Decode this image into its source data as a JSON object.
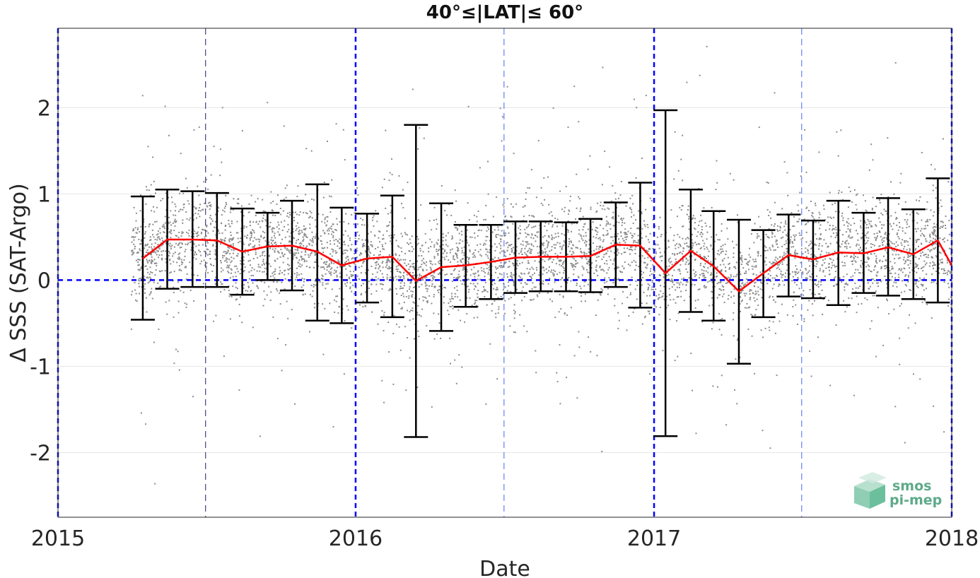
{
  "chart_data": {
    "type": "scatter",
    "title": "40°≤|LAT|≤ 60°",
    "xlabel": "Date",
    "ylabel": "Δ SSS (SAT-Argo)",
    "xlim": [
      "2015-01-01",
      "2018-01-01"
    ],
    "ylim": [
      -2.75,
      2.92
    ],
    "x_ticks": [
      "2015",
      "2016",
      "2017",
      "2018"
    ],
    "y_ticks": [
      -2,
      -1,
      0,
      1,
      2
    ],
    "grid": "horizontal",
    "reference_line_y": 0,
    "year_lines": [
      "2015-01-01",
      "2016-01-01",
      "2017-01-01",
      "2018-01-01"
    ],
    "half_year_lines": [
      "2015-07-01",
      "2016-07-01",
      "2017-07-01"
    ],
    "colors": {
      "scatter": "#8c8c8c",
      "mean_line": "#ff0000",
      "error_bars": "#000000",
      "reference": "#0000ff"
    },
    "scatter_summary": "dense cloud of individual Δ SSS points spread roughly between -2 and 2.5",
    "series": [
      {
        "type": "line",
        "x": [
          "2015-04-15",
          "2015-05-15",
          "2015-06-15",
          "2015-07-15",
          "2015-08-15",
          "2015-09-15",
          "2015-10-15",
          "2015-11-15",
          "2015-12-15",
          "2016-01-15",
          "2016-02-15",
          "2016-03-15",
          "2016-04-15",
          "2016-05-15",
          "2016-06-15",
          "2016-07-15",
          "2016-08-15",
          "2016-09-15",
          "2016-10-15",
          "2016-11-15",
          "2016-12-15",
          "2017-01-15",
          "2017-02-15",
          "2017-03-15",
          "2017-04-15",
          "2017-05-15",
          "2017-06-15",
          "2017-07-15",
          "2017-08-15",
          "2017-09-15",
          "2017-10-15",
          "2017-11-15",
          "2017-12-15",
          "2018-01-01"
        ],
        "values": [
          0.25,
          0.47,
          0.47,
          0.46,
          0.33,
          0.39,
          0.4,
          0.33,
          0.17,
          0.25,
          0.27,
          -0.01,
          0.15,
          0.17,
          0.21,
          0.26,
          0.27,
          0.27,
          0.28,
          0.41,
          0.4,
          0.08,
          0.34,
          0.16,
          -0.13,
          0.08,
          0.29,
          0.24,
          0.32,
          0.31,
          0.38,
          0.3,
          0.46,
          0.17
        ]
      },
      {
        "type": "errorbar",
        "x": [
          "2015-04-15",
          "2015-05-15",
          "2015-06-15",
          "2015-07-15",
          "2015-08-15",
          "2015-09-15",
          "2015-10-15",
          "2015-11-15",
          "2015-12-15",
          "2016-01-15",
          "2016-02-15",
          "2016-03-15",
          "2016-04-15",
          "2016-05-15",
          "2016-06-15",
          "2016-07-15",
          "2016-08-15",
          "2016-09-15",
          "2016-10-15",
          "2016-11-15",
          "2016-12-15",
          "2017-01-15",
          "2017-02-15",
          "2017-03-15",
          "2017-04-15",
          "2017-05-15",
          "2017-06-15",
          "2017-07-15",
          "2017-08-15",
          "2017-09-15",
          "2017-10-15",
          "2017-11-15",
          "2017-12-15"
        ],
        "upper": [
          0.97,
          1.05,
          1.03,
          1.01,
          0.83,
          0.78,
          0.92,
          1.11,
          0.84,
          0.77,
          0.98,
          1.8,
          0.89,
          0.64,
          0.64,
          0.68,
          0.68,
          0.67,
          0.71,
          0.9,
          1.13,
          1.97,
          1.05,
          0.8,
          0.7,
          0.58,
          0.76,
          0.69,
          0.92,
          0.78,
          0.95,
          0.82,
          1.18
        ],
        "lower": [
          -0.46,
          -0.1,
          -0.08,
          -0.08,
          -0.17,
          0.0,
          -0.12,
          -0.47,
          -0.5,
          -0.26,
          -0.43,
          -1.82,
          -0.59,
          -0.31,
          -0.22,
          -0.15,
          -0.13,
          -0.13,
          -0.14,
          -0.08,
          -0.32,
          -1.81,
          -0.37,
          -0.47,
          -0.97,
          -0.43,
          -0.19,
          -0.21,
          -0.29,
          -0.15,
          -0.18,
          -0.22,
          -0.26
        ]
      }
    ]
  },
  "logo": {
    "line1": "smos",
    "line2": "pi-mep"
  }
}
